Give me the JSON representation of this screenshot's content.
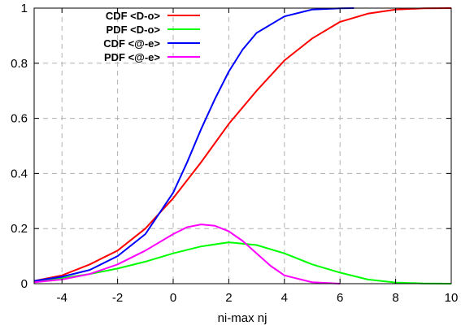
{
  "chart_data": {
    "type": "line",
    "xlabel": "ni-max nj",
    "ylabel": "",
    "xlim": [
      -5,
      10
    ],
    "ylim": [
      0,
      1
    ],
    "xticks": [
      -4,
      -2,
      0,
      2,
      4,
      6,
      8,
      10
    ],
    "yticks": [
      0,
      0.2,
      0.4,
      0.6,
      0.8,
      1
    ],
    "ytick_labels": [
      "0",
      "0.2",
      "0.4",
      "0.6",
      "0.8",
      "1"
    ],
    "grid": true,
    "legend_position": "top-left",
    "series": [
      {
        "name": "CDF <D-o>",
        "color": "#ff0000",
        "x": [
          -5,
          -4,
          -3,
          -2,
          -1,
          0,
          1,
          2,
          3,
          4,
          5,
          6,
          7,
          8,
          9,
          10
        ],
        "y": [
          0.01,
          0.03,
          0.07,
          0.12,
          0.2,
          0.31,
          0.44,
          0.58,
          0.7,
          0.81,
          0.89,
          0.95,
          0.98,
          0.995,
          0.999,
          1.0
        ]
      },
      {
        "name": "PDF <D-o>",
        "color": "#00ff00",
        "x": [
          -5,
          -4,
          -3,
          -2,
          -1,
          0,
          1,
          2,
          3,
          4,
          5,
          6,
          7,
          8,
          9,
          10
        ],
        "y": [
          0.01,
          0.02,
          0.035,
          0.055,
          0.08,
          0.11,
          0.135,
          0.15,
          0.14,
          0.11,
          0.07,
          0.04,
          0.015,
          0.004,
          0.001,
          0.0
        ]
      },
      {
        "name": "CDF <@-e>",
        "color": "#0000ff",
        "x": [
          -5,
          -4,
          -3,
          -2,
          -1,
          0,
          0.5,
          1,
          1.5,
          2,
          2.5,
          3,
          4,
          5,
          6,
          6.5
        ],
        "y": [
          0.01,
          0.025,
          0.05,
          0.1,
          0.18,
          0.33,
          0.44,
          0.56,
          0.67,
          0.77,
          0.85,
          0.91,
          0.97,
          0.995,
          0.999,
          1.0
        ]
      },
      {
        "name": "PDF <@-e>",
        "color": "#ff00ff",
        "x": [
          -5,
          -4,
          -3,
          -2,
          -1,
          0,
          0.5,
          1,
          1.5,
          2,
          2.5,
          3,
          3.5,
          4,
          5,
          6
        ],
        "y": [
          0.005,
          0.015,
          0.035,
          0.07,
          0.12,
          0.18,
          0.205,
          0.215,
          0.21,
          0.19,
          0.155,
          0.11,
          0.065,
          0.03,
          0.005,
          0.0
        ]
      }
    ]
  }
}
